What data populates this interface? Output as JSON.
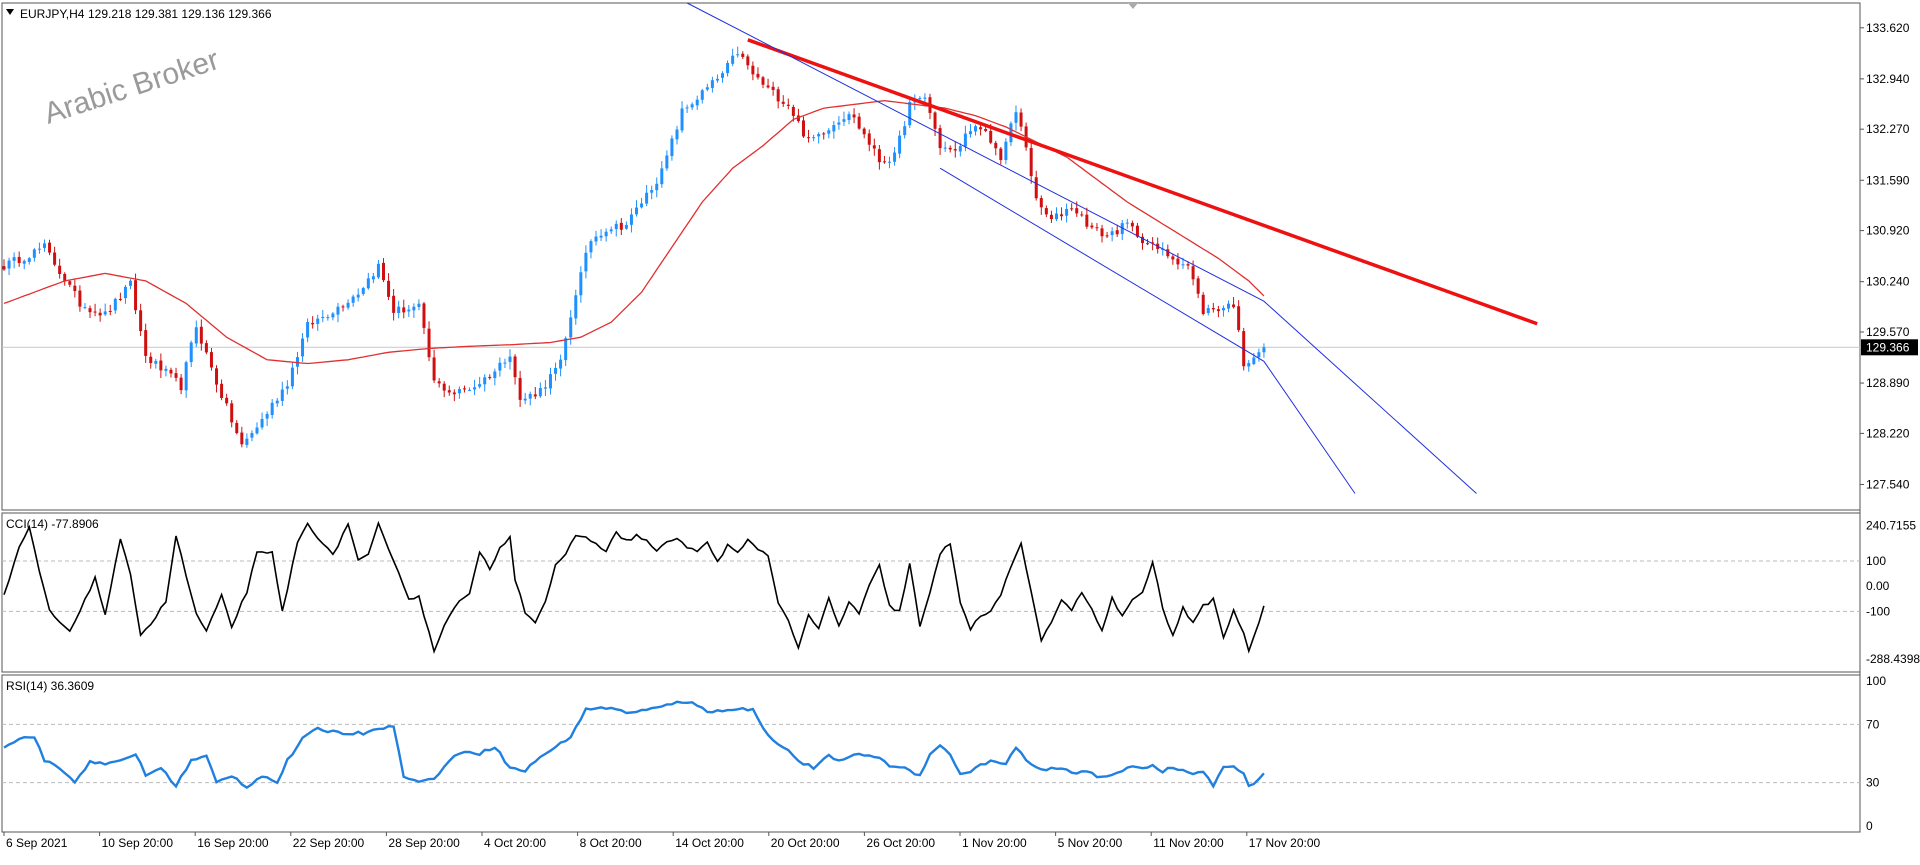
{
  "header": {
    "symbol": "EURJPY,H4",
    "ohlc": "129.218 129.381 129.136 129.366",
    "watermark": "Arabic Broker"
  },
  "colors": {
    "bull": "#1e90ff",
    "bear": "#d01010",
    "ma": "#e03030",
    "trendline": "#ee1111",
    "channel": "#2030e0",
    "cci": "#000000",
    "rsi": "#2080e0",
    "frame": "#555555",
    "level": "#c8c8c8",
    "price_tag_bg": "#000000"
  },
  "chart_data": [
    {
      "type": "candlestick",
      "name": "price",
      "ylim": [
        127.2,
        133.95
      ],
      "y_ticks": [
        "133.620",
        "132.940",
        "132.270",
        "131.590",
        "130.920",
        "130.240",
        "129.570",
        "128.890",
        "128.220",
        "127.540"
      ],
      "last_price": "129.366",
      "x_labels": [
        "6 Sep 2021",
        "10 Sep 20:00",
        "16 Sep 20:00",
        "22 Sep 20:00",
        "28 Sep 20:00",
        "4 Oct 20:00",
        "8 Oct 20:00",
        "14 Oct 20:00",
        "20 Oct 20:00",
        "26 Oct 20:00",
        "1 Nov 20:00",
        "5 Nov 20:00",
        "11 Nov 20:00",
        "17 Nov 20:00"
      ],
      "n_bars": 250,
      "path_anchors": [
        [
          0,
          130.45
        ],
        [
          8,
          130.7
        ],
        [
          15,
          129.95
        ],
        [
          20,
          129.8
        ],
        [
          25,
          130.2
        ],
        [
          28,
          129.25
        ],
        [
          35,
          128.85
        ],
        [
          38,
          129.65
        ],
        [
          42,
          128.9
        ],
        [
          47,
          128.05
        ],
        [
          51,
          128.4
        ],
        [
          56,
          128.9
        ],
        [
          60,
          129.65
        ],
        [
          66,
          129.9
        ],
        [
          70,
          130.1
        ],
        [
          74,
          130.45
        ],
        [
          77,
          129.85
        ],
        [
          82,
          129.9
        ],
        [
          85,
          128.9
        ],
        [
          89,
          128.75
        ],
        [
          93,
          128.85
        ],
        [
          97,
          129.05
        ],
        [
          100,
          129.3
        ],
        [
          102,
          128.65
        ],
        [
          106,
          128.8
        ],
        [
          110,
          129.15
        ],
        [
          113,
          130.1
        ],
        [
          116,
          130.8
        ],
        [
          119,
          130.95
        ],
        [
          123,
          131.0
        ],
        [
          126,
          131.3
        ],
        [
          130,
          131.7
        ],
        [
          134,
          132.5
        ],
        [
          138,
          132.75
        ],
        [
          142,
          133.0
        ],
        [
          145,
          133.3
        ],
        [
          148,
          133.0
        ],
        [
          151,
          132.8
        ],
        [
          155,
          132.6
        ],
        [
          159,
          132.1
        ],
        [
          163,
          132.3
        ],
        [
          167,
          132.5
        ],
        [
          170,
          132.2
        ],
        [
          173,
          131.85
        ],
        [
          176,
          131.9
        ],
        [
          179,
          132.6
        ],
        [
          182,
          132.7
        ],
        [
          185,
          132.05
        ],
        [
          188,
          131.95
        ],
        [
          191,
          132.3
        ],
        [
          194,
          132.2
        ],
        [
          197,
          131.9
        ],
        [
          200,
          132.5
        ],
        [
          202,
          132.05
        ],
        [
          204,
          131.3
        ],
        [
          207,
          131.05
        ],
        [
          211,
          131.25
        ],
        [
          215,
          130.95
        ],
        [
          218,
          130.85
        ],
        [
          222,
          131.0
        ],
        [
          226,
          130.75
        ],
        [
          230,
          130.6
        ],
        [
          234,
          130.45
        ],
        [
          237,
          129.85
        ],
        [
          241,
          129.9
        ],
        [
          243,
          129.95
        ],
        [
          245,
          129.15
        ],
        [
          249,
          129.37
        ]
      ],
      "overlays": {
        "ma_anchors": [
          [
            0,
            129.95
          ],
          [
            12,
            130.25
          ],
          [
            20,
            130.35
          ],
          [
            28,
            130.25
          ],
          [
            36,
            129.95
          ],
          [
            44,
            129.5
          ],
          [
            52,
            129.2
          ],
          [
            60,
            129.15
          ],
          [
            68,
            129.2
          ],
          [
            76,
            129.3
          ],
          [
            84,
            129.35
          ],
          [
            92,
            129.38
          ],
          [
            100,
            129.4
          ],
          [
            108,
            129.43
          ],
          [
            114,
            129.5
          ],
          [
            120,
            129.7
          ],
          [
            126,
            130.1
          ],
          [
            132,
            130.7
          ],
          [
            138,
            131.3
          ],
          [
            144,
            131.75
          ],
          [
            150,
            132.05
          ],
          [
            156,
            132.4
          ],
          [
            162,
            132.55
          ],
          [
            168,
            132.6
          ],
          [
            174,
            132.65
          ],
          [
            180,
            132.6
          ],
          [
            186,
            132.55
          ],
          [
            192,
            132.45
          ],
          [
            198,
            132.3
          ],
          [
            204,
            132.1
          ],
          [
            210,
            131.9
          ],
          [
            216,
            131.6
          ],
          [
            222,
            131.3
          ],
          [
            228,
            131.05
          ],
          [
            234,
            130.8
          ],
          [
            240,
            130.55
          ],
          [
            246,
            130.25
          ],
          [
            249,
            130.05
          ]
        ],
        "trendline": [
          [
            147,
            133.46
          ],
          [
            303,
            129.68
          ]
        ],
        "channel_upper": [
          [
            135,
            134.05
          ],
          [
            249,
            129.98
          ],
          [
            291,
            127.42
          ]
        ],
        "channel_lower": [
          [
            185,
            131.75
          ],
          [
            249,
            129.18
          ],
          [
            267,
            127.42
          ]
        ]
      }
    },
    {
      "type": "line",
      "name": "cci",
      "label": "CCI(14) -77.8906",
      "ylim": [
        -340,
        290
      ],
      "y_tick_labels": [
        "240.7155",
        "100",
        "0.00",
        "-100",
        "-288.4398"
      ],
      "y_tick_values": [
        240.7155,
        100,
        0,
        -100,
        -288.4398
      ],
      "levels": [
        100,
        -100
      ],
      "path_anchors": [
        [
          0,
          -40
        ],
        [
          3,
          150
        ],
        [
          5,
          230
        ],
        [
          7,
          60
        ],
        [
          9,
          -100
        ],
        [
          13,
          -185
        ],
        [
          16,
          -50
        ],
        [
          18,
          30
        ],
        [
          20,
          -110
        ],
        [
          23,
          180
        ],
        [
          25,
          50
        ],
        [
          27,
          -190
        ],
        [
          29,
          -150
        ],
        [
          32,
          -60
        ],
        [
          34,
          200
        ],
        [
          36,
          40
        ],
        [
          38,
          -110
        ],
        [
          40,
          -180
        ],
        [
          43,
          -40
        ],
        [
          45,
          -160
        ],
        [
          48,
          -20
        ],
        [
          50,
          130
        ],
        [
          53,
          130
        ],
        [
          55,
          -100
        ],
        [
          58,
          170
        ],
        [
          60,
          250
        ],
        [
          63,
          170
        ],
        [
          65,
          120
        ],
        [
          68,
          250
        ],
        [
          70,
          100
        ],
        [
          72,
          120
        ],
        [
          74,
          245
        ],
        [
          76,
          140
        ],
        [
          78,
          60
        ],
        [
          80,
          -50
        ],
        [
          82,
          -40
        ],
        [
          85,
          -260
        ],
        [
          87,
          -150
        ],
        [
          89,
          -80
        ],
        [
          92,
          -30
        ],
        [
          94,
          130
        ],
        [
          96,
          70
        ],
        [
          98,
          150
        ],
        [
          100,
          200
        ],
        [
          101,
          30
        ],
        [
          103,
          -100
        ],
        [
          105,
          -140
        ],
        [
          107,
          -60
        ],
        [
          109,
          80
        ],
        [
          111,
          120
        ],
        [
          113,
          205
        ],
        [
          115,
          190
        ],
        [
          117,
          170
        ],
        [
          119,
          140
        ],
        [
          121,
          210
        ],
        [
          123,
          180
        ],
        [
          125,
          200
        ],
        [
          127,
          180
        ],
        [
          129,
          140
        ],
        [
          131,
          170
        ],
        [
          133,
          195
        ],
        [
          135,
          150
        ],
        [
          137,
          140
        ],
        [
          139,
          170
        ],
        [
          141,
          100
        ],
        [
          143,
          160
        ],
        [
          145,
          130
        ],
        [
          147,
          180
        ],
        [
          149,
          150
        ],
        [
          151,
          120
        ],
        [
          153,
          -60
        ],
        [
          155,
          -140
        ],
        [
          157,
          -240
        ],
        [
          159,
          -120
        ],
        [
          161,
          -170
        ],
        [
          163,
          -50
        ],
        [
          165,
          -160
        ],
        [
          167,
          -60
        ],
        [
          169,
          -110
        ],
        [
          171,
          0
        ],
        [
          173,
          80
        ],
        [
          175,
          -80
        ],
        [
          177,
          -100
        ],
        [
          179,
          90
        ],
        [
          181,
          -160
        ],
        [
          183,
          -30
        ],
        [
          185,
          130
        ],
        [
          187,
          170
        ],
        [
          189,
          -60
        ],
        [
          191,
          -170
        ],
        [
          193,
          -120
        ],
        [
          195,
          -100
        ],
        [
          197,
          -30
        ],
        [
          199,
          70
        ],
        [
          201,
          165
        ],
        [
          203,
          -20
        ],
        [
          205,
          -210
        ],
        [
          207,
          -140
        ],
        [
          209,
          -60
        ],
        [
          211,
          -90
        ],
        [
          213,
          -30
        ],
        [
          215,
          -90
        ],
        [
          217,
          -180
        ],
        [
          219,
          -50
        ],
        [
          221,
          -120
        ],
        [
          223,
          -50
        ],
        [
          225,
          -30
        ],
        [
          227,
          100
        ],
        [
          229,
          -90
        ],
        [
          231,
          -200
        ],
        [
          233,
          -80
        ],
        [
          235,
          -150
        ],
        [
          237,
          -80
        ],
        [
          239,
          -50
        ],
        [
          241,
          -200
        ],
        [
          243,
          -100
        ],
        [
          245,
          -180
        ],
        [
          246,
          -260
        ],
        [
          249,
          -78
        ]
      ]
    },
    {
      "type": "line",
      "name": "rsi",
      "label": "RSI(14) 36.3609",
      "ylim": [
        -4,
        104
      ],
      "y_tick_labels": [
        "100",
        "70",
        "30",
        "0"
      ],
      "y_tick_values": [
        100,
        70,
        30,
        0
      ],
      "levels": [
        70,
        30
      ],
      "path_anchors": [
        [
          0,
          55
        ],
        [
          3,
          60
        ],
        [
          6,
          62
        ],
        [
          8,
          45
        ],
        [
          11,
          40
        ],
        [
          14,
          30
        ],
        [
          17,
          45
        ],
        [
          20,
          42
        ],
        [
          23,
          45
        ],
        [
          26,
          50
        ],
        [
          28,
          35
        ],
        [
          31,
          40
        ],
        [
          34,
          28
        ],
        [
          37,
          45
        ],
        [
          40,
          48
        ],
        [
          42,
          30
        ],
        [
          45,
          35
        ],
        [
          48,
          27
        ],
        [
          51,
          35
        ],
        [
          54,
          30
        ],
        [
          56,
          45
        ],
        [
          59,
          60
        ],
        [
          62,
          67
        ],
        [
          65,
          65
        ],
        [
          68,
          64
        ],
        [
          71,
          64
        ],
        [
          74,
          68
        ],
        [
          77,
          68
        ],
        [
          79,
          35
        ],
        [
          82,
          30
        ],
        [
          85,
          33
        ],
        [
          88,
          45
        ],
        [
          91,
          52
        ],
        [
          94,
          50
        ],
        [
          97,
          55
        ],
        [
          100,
          40
        ],
        [
          103,
          38
        ],
        [
          106,
          48
        ],
        [
          109,
          54
        ],
        [
          112,
          62
        ],
        [
          115,
          80
        ],
        [
          118,
          82
        ],
        [
          121,
          80
        ],
        [
          124,
          78
        ],
        [
          127,
          80
        ],
        [
          130,
          82
        ],
        [
          133,
          85
        ],
        [
          136,
          86
        ],
        [
          139,
          78
        ],
        [
          142,
          80
        ],
        [
          145,
          81
        ],
        [
          148,
          80
        ],
        [
          151,
          62
        ],
        [
          154,
          55
        ],
        [
          157,
          45
        ],
        [
          160,
          40
        ],
        [
          163,
          48
        ],
        [
          166,
          45
        ],
        [
          169,
          50
        ],
        [
          172,
          48
        ],
        [
          175,
          42
        ],
        [
          178,
          40
        ],
        [
          181,
          35
        ],
        [
          183,
          50
        ],
        [
          185,
          55
        ],
        [
          187,
          50
        ],
        [
          189,
          35
        ],
        [
          192,
          40
        ],
        [
          195,
          45
        ],
        [
          198,
          42
        ],
        [
          200,
          55
        ],
        [
          202,
          45
        ],
        [
          205,
          38
        ],
        [
          208,
          40
        ],
        [
          211,
          37
        ],
        [
          214,
          38
        ],
        [
          217,
          33
        ],
        [
          219,
          35
        ],
        [
          221,
          38
        ],
        [
          223,
          42
        ],
        [
          225,
          40
        ],
        [
          227,
          42
        ],
        [
          229,
          38
        ],
        [
          231,
          40
        ],
        [
          233,
          38
        ],
        [
          235,
          36
        ],
        [
          237,
          38
        ],
        [
          239,
          27
        ],
        [
          241,
          40
        ],
        [
          243,
          42
        ],
        [
          245,
          36
        ],
        [
          246,
          27
        ],
        [
          249,
          36.4
        ]
      ]
    }
  ]
}
